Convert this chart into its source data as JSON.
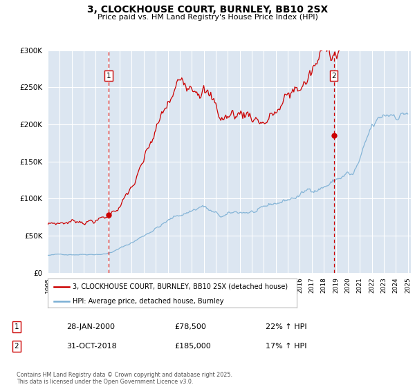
{
  "title": "3, CLOCKHOUSE COURT, BURNLEY, BB10 2SX",
  "subtitle": "Price paid vs. HM Land Registry's House Price Index (HPI)",
  "plot_bg_color": "#dce6f1",
  "red_color": "#cc0000",
  "blue_color": "#7bafd4",
  "grid_color": "#ffffff",
  "ylim": [
    0,
    300000
  ],
  "yticks": [
    0,
    50000,
    100000,
    150000,
    200000,
    250000,
    300000
  ],
  "ytick_labels": [
    "£0",
    "£50K",
    "£100K",
    "£150K",
    "£200K",
    "£250K",
    "£300K"
  ],
  "legend_label_red": "3, CLOCKHOUSE COURT, BURNLEY, BB10 2SX (detached house)",
  "legend_label_blue": "HPI: Average price, detached house, Burnley",
  "marker1_date": "28-JAN-2000",
  "marker1_price": "£78,500",
  "marker1_hpi": "22% ↑ HPI",
  "marker1_year": 2000.07,
  "marker1_value": 78500,
  "marker2_date": "31-OCT-2018",
  "marker2_price": "£185,000",
  "marker2_hpi": "17% ↑ HPI",
  "marker2_year": 2018.83,
  "marker2_value": 185000,
  "footer": "Contains HM Land Registry data © Crown copyright and database right 2025.\nThis data is licensed under the Open Government Licence v3.0.",
  "xtick_years": [
    1995,
    1996,
    1997,
    1998,
    1999,
    2000,
    2001,
    2002,
    2003,
    2004,
    2005,
    2006,
    2007,
    2008,
    2009,
    2010,
    2011,
    2012,
    2013,
    2014,
    2015,
    2016,
    2017,
    2018,
    2019,
    2020,
    2021,
    2022,
    2023,
    2024,
    2025
  ]
}
